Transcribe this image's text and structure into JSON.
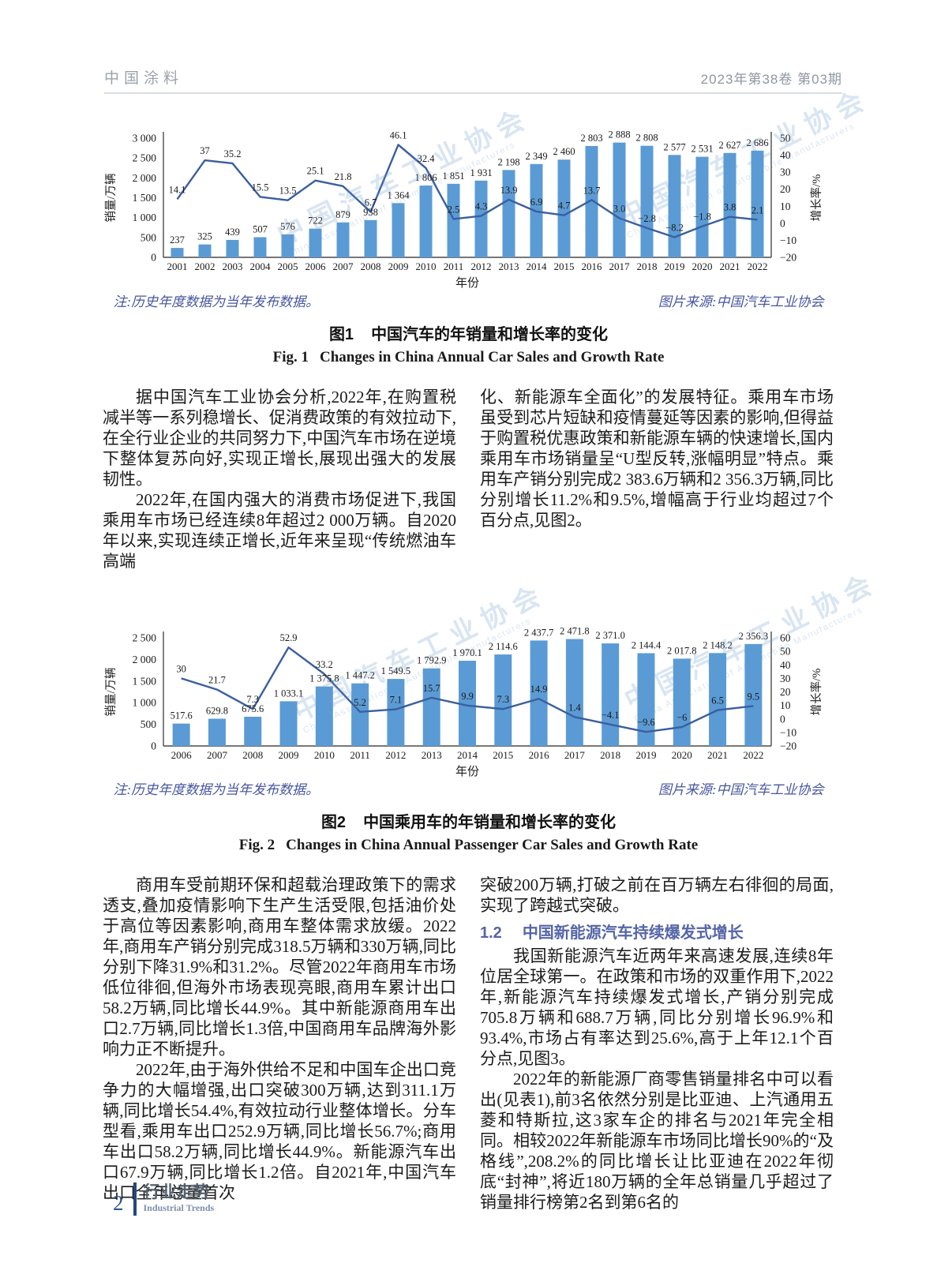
{
  "page": {
    "header_left": "中国涂料",
    "header_right": "2023年第38卷  第03期",
    "footer_page_number": "2",
    "footer_section_cn": "行业走势",
    "footer_section_en": "Industrial Trends"
  },
  "colors": {
    "bar": "#5B9BD5",
    "line": "#3A5F9E",
    "note_text": "#4656a0",
    "section_heading": "#5565a8",
    "footer_accent": "#24477d"
  },
  "figures": {
    "fig1": {
      "note": "注:历史年度数据为当年发布数据。",
      "source": "图片来源:中国汽车工业协会",
      "caption_label_cn": "图1",
      "caption_text_cn": "中国汽车的年销量和增长率的变化",
      "caption_label_en": "Fig. 1",
      "caption_text_en": "Changes in China Annual Car Sales and Growth Rate",
      "watermark_cn": "中国汽车工业协会",
      "watermark_en": "China Association of Automobile Manufacturers"
    },
    "fig2": {
      "note": "注:历史年度数据为当年发布数据。",
      "source": "图片来源:中国汽车工业协会",
      "caption_label_cn": "图2",
      "caption_text_cn": "中国乘用车的年销量和增长率的变化",
      "caption_label_en": "Fig. 2",
      "caption_text_en": "Changes in China Annual Passenger Car Sales and Growth Rate",
      "watermark_cn": "中国汽车工业协会",
      "watermark_en": "China Association of Automobile Manufacturers"
    }
  },
  "chart_data": [
    {
      "type": "bar+line",
      "title": "图1 中国汽车的年销量和增长率的变化",
      "xlabel": "年份",
      "ylabel_left": "销量/万辆",
      "ylabel_right": "增长率/%",
      "legend_position": "none",
      "grid": false,
      "categories": [
        "2001",
        "2002",
        "2003",
        "2004",
        "2005",
        "2006",
        "2007",
        "2008",
        "2009",
        "2010",
        "2011",
        "2012",
        "2013",
        "2014",
        "2015",
        "2016",
        "2017",
        "2018",
        "2019",
        "2020",
        "2021",
        "2022"
      ],
      "left_axis": {
        "min": 0,
        "max": 3000,
        "ticks": [
          "0",
          "500",
          "1 000",
          "1 500",
          "2 000",
          "2 500",
          "3 000"
        ]
      },
      "right_axis": {
        "min": -20,
        "max": 50,
        "ticks": [
          "−20",
          "−10",
          "0",
          "10",
          "20",
          "30",
          "40",
          "50"
        ]
      },
      "series": [
        {
          "name": "销量/万辆",
          "type": "bar",
          "values": [
            237,
            325,
            439,
            507,
            576,
            722,
            879,
            938,
            1364,
            1806,
            1851,
            1931,
            2198,
            2349,
            2460,
            2803,
            2888,
            2808,
            2577,
            2531,
            2627,
            2686
          ],
          "labels": [
            "237",
            "325",
            "439",
            "507",
            "576",
            "722",
            "879",
            "938",
            "1 364",
            "1 806",
            "1 851",
            "1 931",
            "2 198",
            "2 349",
            "2 460",
            "2 803",
            "2 888",
            "2 808",
            "2 577",
            "2 531",
            "2 627",
            "2 686"
          ]
        },
        {
          "name": "增长率/%",
          "type": "line",
          "values": [
            14.1,
            37,
            35.2,
            15.5,
            13.5,
            25.1,
            21.8,
            6.7,
            46.1,
            32.4,
            2.5,
            4.3,
            13.9,
            6.9,
            4.7,
            13.7,
            3.0,
            -2.8,
            -8.2,
            -1.8,
            3.8,
            2.1
          ],
          "labels": [
            "14.1",
            "37",
            "35.2",
            "15.5",
            "13.5",
            "25.1",
            "21.8",
            "6.7",
            "46.1",
            "32.4",
            "2.5",
            "4.3",
            "13.9",
            "6.9",
            "4.7",
            "13.7",
            "3.0",
            "−2.8",
            "−8.2",
            "−1.8",
            "3.8",
            "2.1"
          ]
        }
      ]
    },
    {
      "type": "bar+line",
      "title": "图2 中国乘用车的年销量和增长率的变化",
      "xlabel": "年份",
      "ylabel_left": "销量/万辆",
      "ylabel_right": "增长率/%",
      "legend_position": "none",
      "grid": false,
      "categories": [
        "2006",
        "2007",
        "2008",
        "2009",
        "2010",
        "2011",
        "2012",
        "2013",
        "2014",
        "2015",
        "2016",
        "2017",
        "2018",
        "2019",
        "2020",
        "2021",
        "2022"
      ],
      "left_axis": {
        "min": 0,
        "max": 2500,
        "ticks": [
          "0",
          "500",
          "1 000",
          "1 500",
          "2 000",
          "2 500"
        ]
      },
      "right_axis": {
        "min": -20,
        "max": 60,
        "ticks": [
          "−20",
          "−10",
          "0",
          "10",
          "20",
          "30",
          "40",
          "50",
          "60"
        ]
      },
      "series": [
        {
          "name": "销量/万辆",
          "type": "bar",
          "values": [
            517.6,
            629.8,
            675.6,
            1033.1,
            1375.8,
            1447.2,
            1549.5,
            1792.9,
            1970.1,
            2114.6,
            2437.7,
            2471.8,
            2371.0,
            2144.4,
            2017.8,
            2148.2,
            2356.3
          ],
          "labels": [
            "517.6",
            "629.8",
            "675.6",
            "1 033.1",
            "1 375.8",
            "1 447.2",
            "1 549.5",
            "1 792.9",
            "1 970.1",
            "2 114.6",
            "2 437.7",
            "2 471.8",
            "2 371.0",
            "2 144.4",
            "2 017.8",
            "2 148.2",
            "2 356.3"
          ]
        },
        {
          "name": "增长率/%",
          "type": "line",
          "values": [
            30,
            21.7,
            7.3,
            52.9,
            33.2,
            5.2,
            7.1,
            15.7,
            9.9,
            7.3,
            14.9,
            1.4,
            -4.1,
            -9.6,
            -6,
            6.5,
            9.5
          ],
          "labels": [
            "30",
            "21.7",
            "7.3",
            "52.9",
            "33.2",
            "5.2",
            "7.1",
            "15.7",
            "9.9",
            "7.3",
            "14.9",
            "1.4",
            "−4.1",
            "−9.6",
            "−6",
            "6.5",
            "9.5"
          ]
        }
      ]
    }
  ],
  "body1": {
    "left": [
      "据中国汽车工业协会分析,2022年,在购置税减半等一系列稳增长、促消费政策的有效拉动下,在全行业企业的共同努力下,中国汽车市场在逆境下整体复苏向好,实现正增长,展现出强大的发展韧性。",
      "2022年,在国内强大的消费市场促进下,我国乘用车市场已经连续8年超过2 000万辆。自2020年以来,实现连续正增长,近年来呈现“传统燃油车高端"
    ],
    "right": [
      "化、新能源车全面化”的发展特征。乘用车市场虽受到芯片短缺和疫情蔓延等因素的影响,但得益于购置税优惠政策和新能源车辆的快速增长,国内乘用车市场销量呈“U型反转,涨幅明显”特点。乘用车产销分别完成2 383.6万辆和2 356.3万辆,同比分别增长11.2%和9.5%,增幅高于行业均超过7个百分点,见图2。"
    ]
  },
  "body2": {
    "left": [
      "商用车受前期环保和超载治理政策下的需求透支,叠加疫情影响下生产生活受限,包括油价处于高位等因素影响,商用车整体需求放缓。2022年,商用车产销分别完成318.5万辆和330万辆,同比分别下降31.9%和31.2%。尽管2022年商用车市场低位徘徊,但海外市场表现亮眼,商用车累计出口58.2万辆,同比增长44.9%。其中新能源商用车出口2.7万辆,同比增长1.3倍,中国商用车品牌海外影响力正不断提升。",
      "2022年,由于海外供给不足和中国车企出口竞争力的大幅增强,出口突破300万辆,达到311.1万辆,同比增长54.4%,有效拉动行业整体增长。分车型看,乘用车出口252.9万辆,同比增长56.7%;商用车出口58.2万辆,同比增长44.9%。新能源汽车出口67.9万辆,同比增长1.2倍。自2021年,中国汽车出口全年总量首次"
    ],
    "right_p1": "突破200万辆,打破之前在百万辆左右徘徊的局面,实现了跨越式突破。",
    "heading": {
      "num": "1.2",
      "text": "中国新能源汽车持续爆发式增长"
    },
    "right_p2": "我国新能源汽车近两年来高速发展,连续8年位居全球第一。在政策和市场的双重作用下,2022年,新能源汽车持续爆发式增长,产销分别完成705.8万辆和688.7万辆,同比分别增长96.9%和93.4%,市场占有率达到25.6%,高于上年12.1个百分点,见图3。",
    "right_p3": "2022年的新能源厂商零售销量排名中可以看出(见表1),前3名依然分别是比亚迪、上汽通用五菱和特斯拉,这3家车企的排名与2021年完全相同。相较2022年新能源车市场同比增长90%的“及格线”,208.2%的同比增长让比亚迪在2022年彻底“封神”,将近180万辆的全年总销量几乎超过了销量排行榜第2名到第6名的"
  }
}
